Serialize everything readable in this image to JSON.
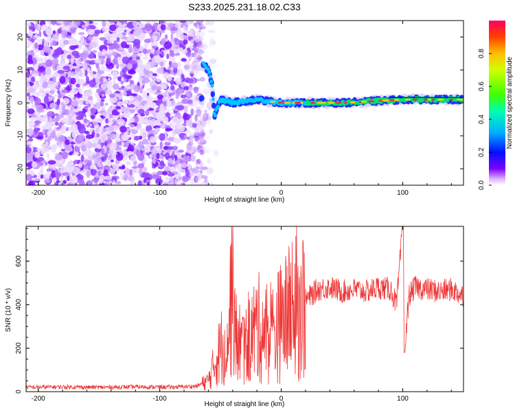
{
  "title": "S233.2025.231.18.02.C33",
  "chart_data": [
    {
      "type": "heatmap",
      "xlabel": "Height of straight line (km)",
      "ylabel": "Frequency (Hz)",
      "xlim": [
        -210,
        150
      ],
      "ylim": [
        -25,
        25
      ],
      "xticks": [
        -200,
        -100,
        0,
        100
      ],
      "yticks": [
        -20,
        -10,
        0,
        10,
        20
      ],
      "colorbar": {
        "label": "Normalized spectral amplitude",
        "range": [
          0,
          1
        ],
        "ticks": [
          "0.0",
          "0.2",
          "0.4",
          "0.6",
          "0.8"
        ],
        "colors": [
          "#ffffff",
          "#8000ff",
          "#0000ff",
          "#00bfff",
          "#00ff80",
          "#80ff00",
          "#ffd000",
          "#ff4000",
          "#ff0060"
        ]
      },
      "noise_region_km": [
        -210,
        -65
      ],
      "signal_track": [
        {
          "x": -65,
          "y": 12
        },
        {
          "x": -60,
          "y": 10
        },
        {
          "x": -57,
          "y": 6
        },
        {
          "x": -55,
          "y": -4
        },
        {
          "x": -50,
          "y": 1
        },
        {
          "x": -40,
          "y": 0
        },
        {
          "x": -20,
          "y": 1
        },
        {
          "x": 0,
          "y": 0
        },
        {
          "x": 50,
          "y": 0
        },
        {
          "x": 100,
          "y": 1
        },
        {
          "x": 150,
          "y": 1
        }
      ]
    },
    {
      "type": "line",
      "xlabel": "Height of straight line (km)",
      "ylabel": "SNR (10 * v/v)",
      "xlim": [
        -210,
        150
      ],
      "ylim": [
        0,
        760
      ],
      "xticks": [
        -200,
        -100,
        0,
        100
      ],
      "yticks": [
        0,
        200,
        400,
        600
      ],
      "color": "#ee3333",
      "series": [
        {
          "name": "SNR",
          "points": [
            [
              -210,
              20
            ],
            [
              -180,
              22
            ],
            [
              -150,
              20
            ],
            [
              -120,
              22
            ],
            [
              -90,
              21
            ],
            [
              -70,
              25
            ],
            [
              -60,
              50
            ],
            [
              -50,
              200
            ],
            [
              -43,
              280
            ],
            [
              -40,
              600
            ],
            [
              -38,
              250
            ],
            [
              -30,
              200
            ],
            [
              -20,
              300
            ],
            [
              -10,
              250
            ],
            [
              0,
              320
            ],
            [
              10,
              380
            ],
            [
              20,
              420
            ],
            [
              30,
              470
            ],
            [
              40,
              480
            ],
            [
              50,
              460
            ],
            [
              60,
              470
            ],
            [
              70,
              460
            ],
            [
              80,
              480
            ],
            [
              90,
              470
            ],
            [
              95,
              400
            ],
            [
              100,
              760
            ],
            [
              102,
              200
            ],
            [
              105,
              440
            ],
            [
              110,
              480
            ],
            [
              120,
              470
            ],
            [
              130,
              460
            ],
            [
              140,
              470
            ],
            [
              150,
              440
            ]
          ]
        }
      ]
    }
  ]
}
